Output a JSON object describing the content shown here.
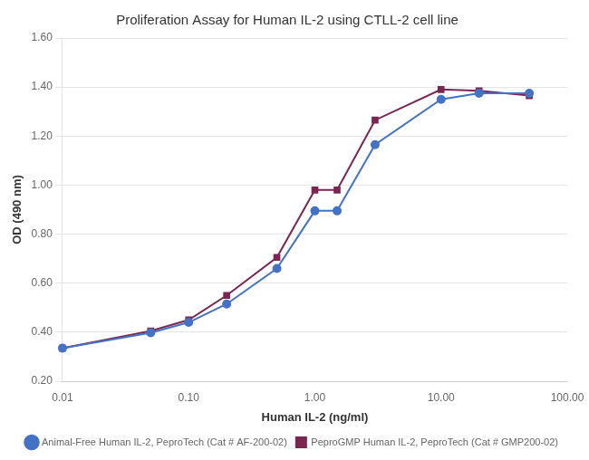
{
  "chart_data": {
    "type": "line",
    "title": "Proliferation Assay for Human IL-2 using CTLL-2 cell line",
    "xlabel": "Human IL-2 (ng/ml)",
    "ylabel": "OD (490 nm)",
    "log": "x",
    "grid": "y",
    "legend": "lower right",
    "xlim": [
      0.01,
      100.0
    ],
    "xticks": [
      0.01,
      {
        "value": 0.1,
        "label": "0.10"
      },
      {
        "value": 1,
        "label": "1.00"
      },
      {
        "value": 10,
        "label": "10.00"
      },
      {
        "value": 100,
        "label": "100.00"
      }
    ],
    "ylim": [
      0.2,
      1.6
    ],
    "yticks": [
      {
        "value": 0.2,
        "label": "0.20"
      },
      {
        "value": 0.4,
        "label": "0.40"
      },
      {
        "value": 0.6,
        "label": "0.60"
      },
      {
        "value": 0.8,
        "label": "0.80"
      },
      {
        "value": 1.0,
        "label": "1.00"
      },
      {
        "value": 1.2,
        "label": "1.20"
      },
      {
        "value": 1.4,
        "label": "1.40"
      },
      {
        "value": 1.6,
        "label": "1.60"
      }
    ],
    "x": [
      0.01,
      0.05,
      0.1,
      0.2,
      0.5,
      1.0,
      1.5,
      3.0,
      10.0,
      20.0,
      50.0
    ],
    "series": [
      {
        "name": "Animal-Free Human IL-2, PeproTech (Cat # AF-200-02)",
        "color": "#4472C4",
        "marker": "circle",
        "values": [
          0.335,
          0.398,
          0.44,
          0.515,
          0.66,
          0.895,
          0.895,
          1.165,
          1.35,
          1.375,
          1.375
        ]
      },
      {
        "name": "PeproGMP Human IL-2, PeproTech (Cat # GMP200-02)",
        "color": "#7B2651",
        "marker": "square",
        "values": [
          0.335,
          0.405,
          0.45,
          0.55,
          0.705,
          0.98,
          0.98,
          1.265,
          1.39,
          1.385,
          1.365
        ]
      }
    ]
  }
}
